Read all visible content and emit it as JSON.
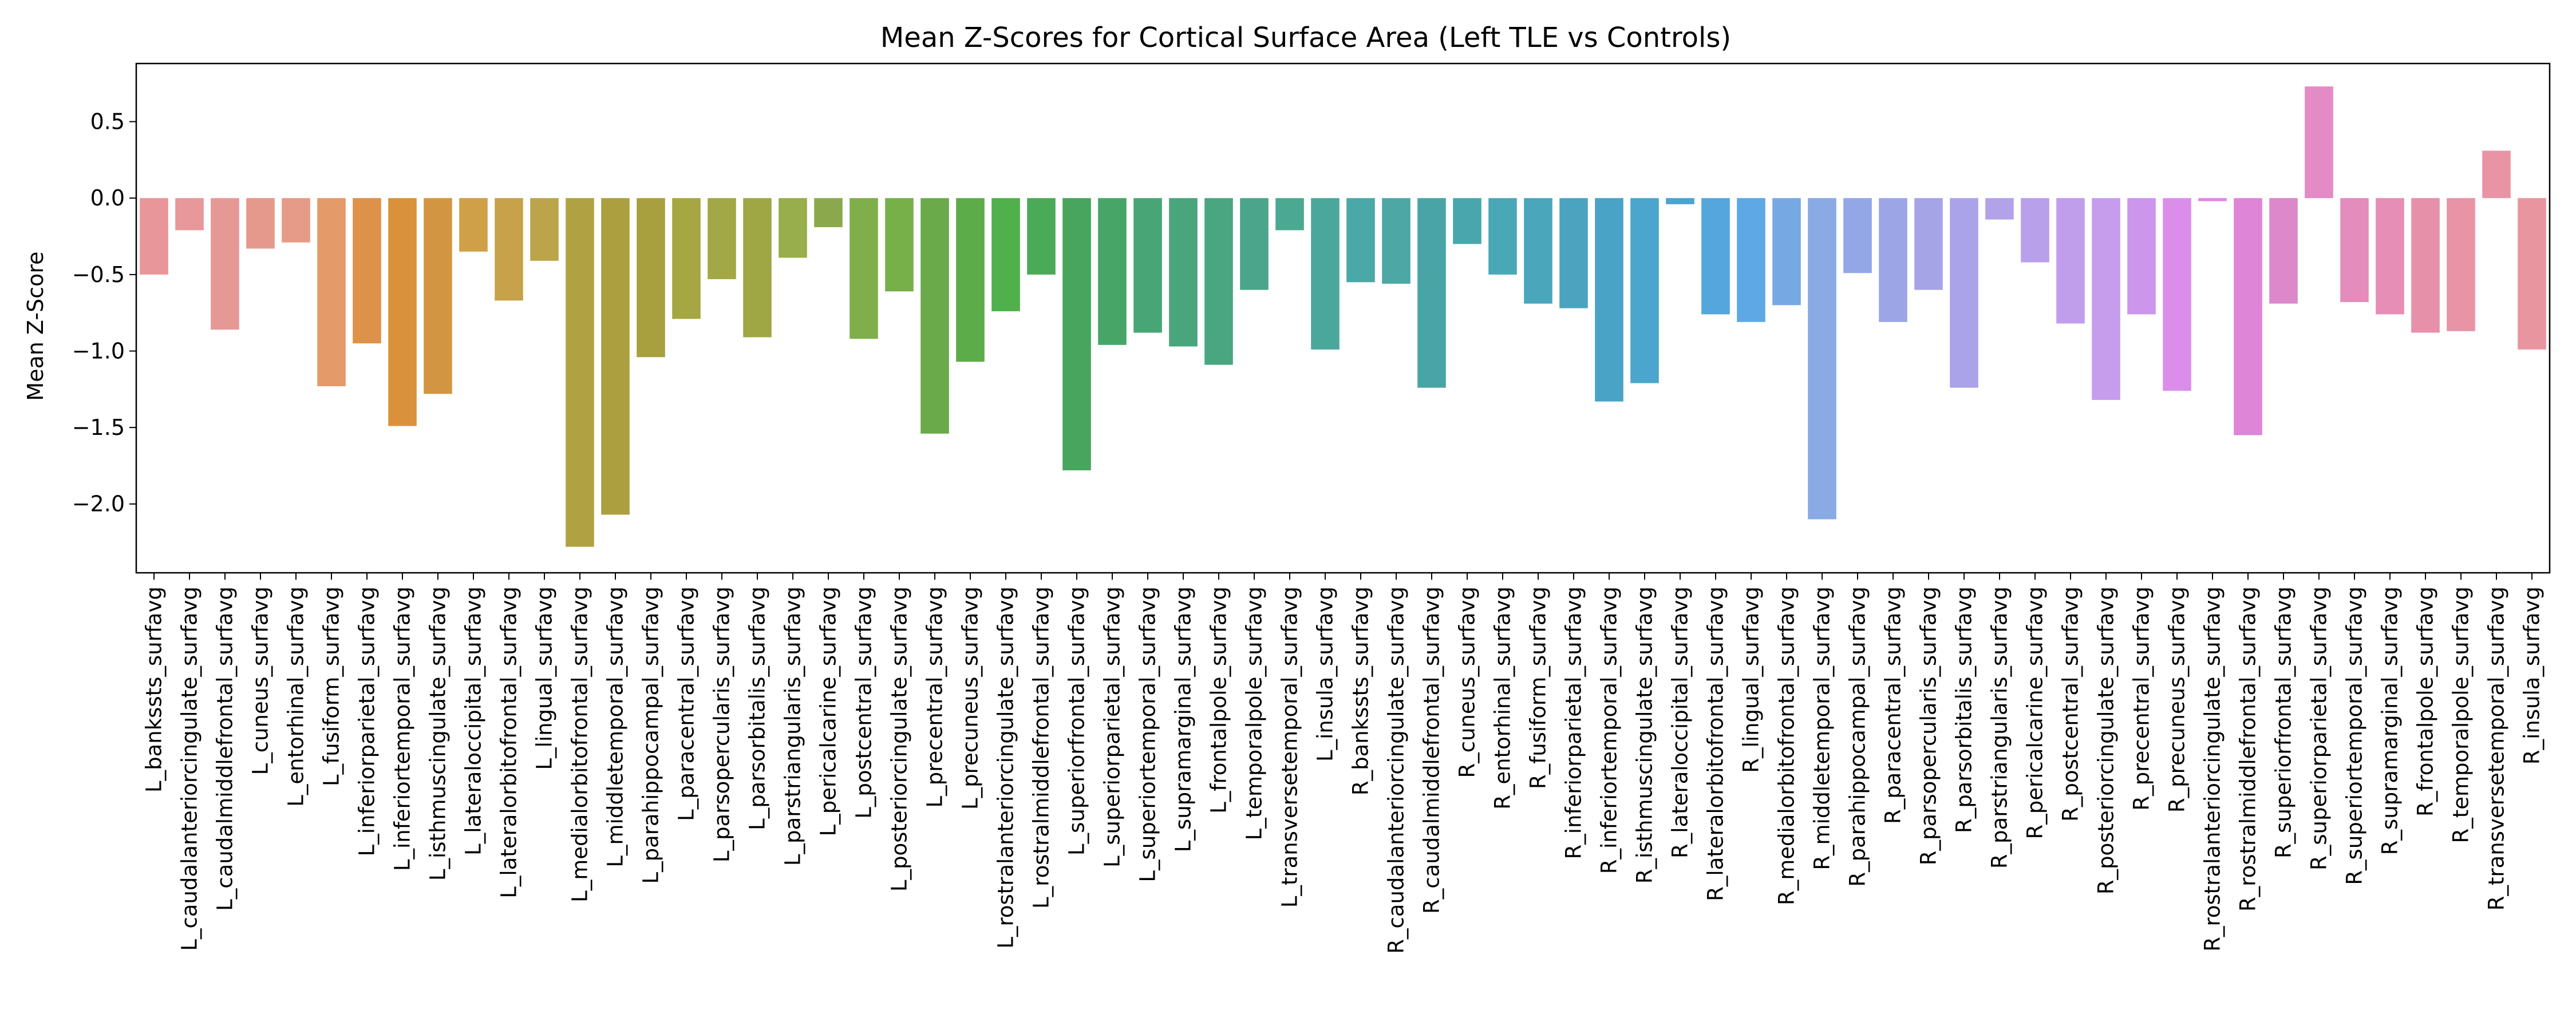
{
  "chart_data": {
    "type": "bar",
    "title": "Mean Z-Scores for Cortical Surface Area (Left TLE vs Controls)",
    "xlabel": "",
    "ylabel": "Mean Z-Score",
    "ylim": [
      -2.45,
      0.88
    ],
    "yticks": [
      -2.0,
      -1.5,
      -1.0,
      -0.5,
      0.0,
      0.5
    ],
    "ytick_labels": [
      "−2.0",
      "−1.5",
      "−1.0",
      "−0.5",
      "0.0",
      "0.5"
    ],
    "grid": false,
    "legend": "none",
    "categories": [
      "L_bankssts_surfavg",
      "L_caudalanteriorcingulate_surfavg",
      "L_caudalmiddlefrontal_surfavg",
      "L_cuneus_surfavg",
      "L_entorhinal_surfavg",
      "L_fusiform_surfavg",
      "L_inferiorparietal_surfavg",
      "L_inferiortemporal_surfavg",
      "L_isthmuscingulate_surfavg",
      "L_lateraloccipital_surfavg",
      "L_lateralorbitofrontal_surfavg",
      "L_lingual_surfavg",
      "L_medialorbitofrontal_surfavg",
      "L_middletemporal_surfavg",
      "L_parahippocampal_surfavg",
      "L_paracentral_surfavg",
      "L_parsopercularis_surfavg",
      "L_parsorbitalis_surfavg",
      "L_parstriangularis_surfavg",
      "L_pericalcarine_surfavg",
      "L_postcentral_surfavg",
      "L_posteriorcingulate_surfavg",
      "L_precentral_surfavg",
      "L_precuneus_surfavg",
      "L_rostralanteriorcingulate_surfavg",
      "L_rostralmiddlefrontal_surfavg",
      "L_superiorfrontal_surfavg",
      "L_superiorparietal_surfavg",
      "L_superiortemporal_surfavg",
      "L_supramarginal_surfavg",
      "L_frontalpole_surfavg",
      "L_temporalpole_surfavg",
      "L_transversetemporal_surfavg",
      "L_insula_surfavg",
      "R_bankssts_surfavg",
      "R_caudalanteriorcingulate_surfavg",
      "R_caudalmiddlefrontal_surfavg",
      "R_cuneus_surfavg",
      "R_entorhinal_surfavg",
      "R_fusiform_surfavg",
      "R_inferiorparietal_surfavg",
      "R_inferiortemporal_surfavg",
      "R_isthmuscingulate_surfavg",
      "R_lateraloccipital_surfavg",
      "R_lateralorbitofrontal_surfavg",
      "R_lingual_surfavg",
      "R_medialorbitofrontal_surfavg",
      "R_middletemporal_surfavg",
      "R_parahippocampal_surfavg",
      "R_paracentral_surfavg",
      "R_parsopercularis_surfavg",
      "R_parsorbitalis_surfavg",
      "R_parstriangularis_surfavg",
      "R_pericalcarine_surfavg",
      "R_postcentral_surfavg",
      "R_posteriorcingulate_surfavg",
      "R_precentral_surfavg",
      "R_precuneus_surfavg",
      "R_rostralanteriorcingulate_surfavg",
      "R_rostralmiddlefrontal_surfavg",
      "R_superiorfrontal_surfavg",
      "R_superiorparietal_surfavg",
      "R_superiortemporal_surfavg",
      "R_supramarginal_surfavg",
      "R_frontalpole_surfavg",
      "R_temporalpole_surfavg",
      "R_transversetemporal_surfavg",
      "R_insula_surfavg"
    ],
    "values": [
      -0.5,
      -0.21,
      -0.86,
      -0.33,
      -0.29,
      -1.23,
      -0.95,
      -1.49,
      -1.28,
      -0.35,
      -0.67,
      -0.41,
      -2.28,
      -2.07,
      -1.04,
      -0.79,
      -0.53,
      -0.91,
      -0.39,
      -0.19,
      -0.92,
      -0.61,
      -1.54,
      -1.07,
      -0.74,
      -0.5,
      -1.78,
      -0.96,
      -0.88,
      -0.97,
      -1.09,
      -0.6,
      -0.21,
      -0.99,
      -0.55,
      -0.56,
      -1.24,
      -0.3,
      -0.5,
      -0.69,
      -0.72,
      -1.33,
      -1.21,
      -0.04,
      -0.76,
      -0.81,
      -0.7,
      -2.1,
      -0.49,
      -0.81,
      -0.6,
      -1.24,
      -0.14,
      -0.42,
      -0.82,
      -1.32,
      -0.76,
      -1.26,
      -0.02,
      -1.55,
      -0.69,
      0.73,
      -0.68,
      -0.76,
      -0.88,
      -0.87,
      0.31,
      -0.99
    ],
    "colors": [
      "#e8969a",
      "#e8979a",
      "#e69895",
      "#e5998c",
      "#e69b88",
      "#e59a6a",
      "#de9249",
      "#d9923b",
      "#d29642",
      "#d0a048",
      "#c7a24a",
      "#bba449",
      "#b0a243",
      "#ac9f3f",
      "#a8a03e",
      "#a5a742",
      "#a2a845",
      "#9fa745",
      "#98ad4b",
      "#8ba94c",
      "#7fae4b",
      "#77af49",
      "#6aaa4a",
      "#5cac4a",
      "#4fb04c",
      "#4baa58",
      "#47a55e",
      "#46a567",
      "#48a575",
      "#49a57c",
      "#49a681",
      "#4aa58a",
      "#4ba891",
      "#4aa79b",
      "#4aa9a7",
      "#4ca7a5",
      "#49a5a5",
      "#4aa6ad",
      "#4aa7b5",
      "#4aa6bb",
      "#4aa4c0",
      "#49a3c6",
      "#4ba5cc",
      "#4ba3d2",
      "#55a6dd",
      "#5ea8e5",
      "#76a8e3",
      "#89aae4",
      "#93a7e6",
      "#9ca6e7",
      "#a5a4e7",
      "#aba3e9",
      "#b2a2ea",
      "#b9a0eb",
      "#c09eeb",
      "#c69ded",
      "#cb96eb",
      "#da8eea",
      "#e285e7",
      "#de85d8",
      "#dd88ca",
      "#e48ac4",
      "#e48cbc",
      "#e68eb5",
      "#e690aa",
      "#e893a6",
      "#e894a4",
      "#e8959f"
    ]
  }
}
